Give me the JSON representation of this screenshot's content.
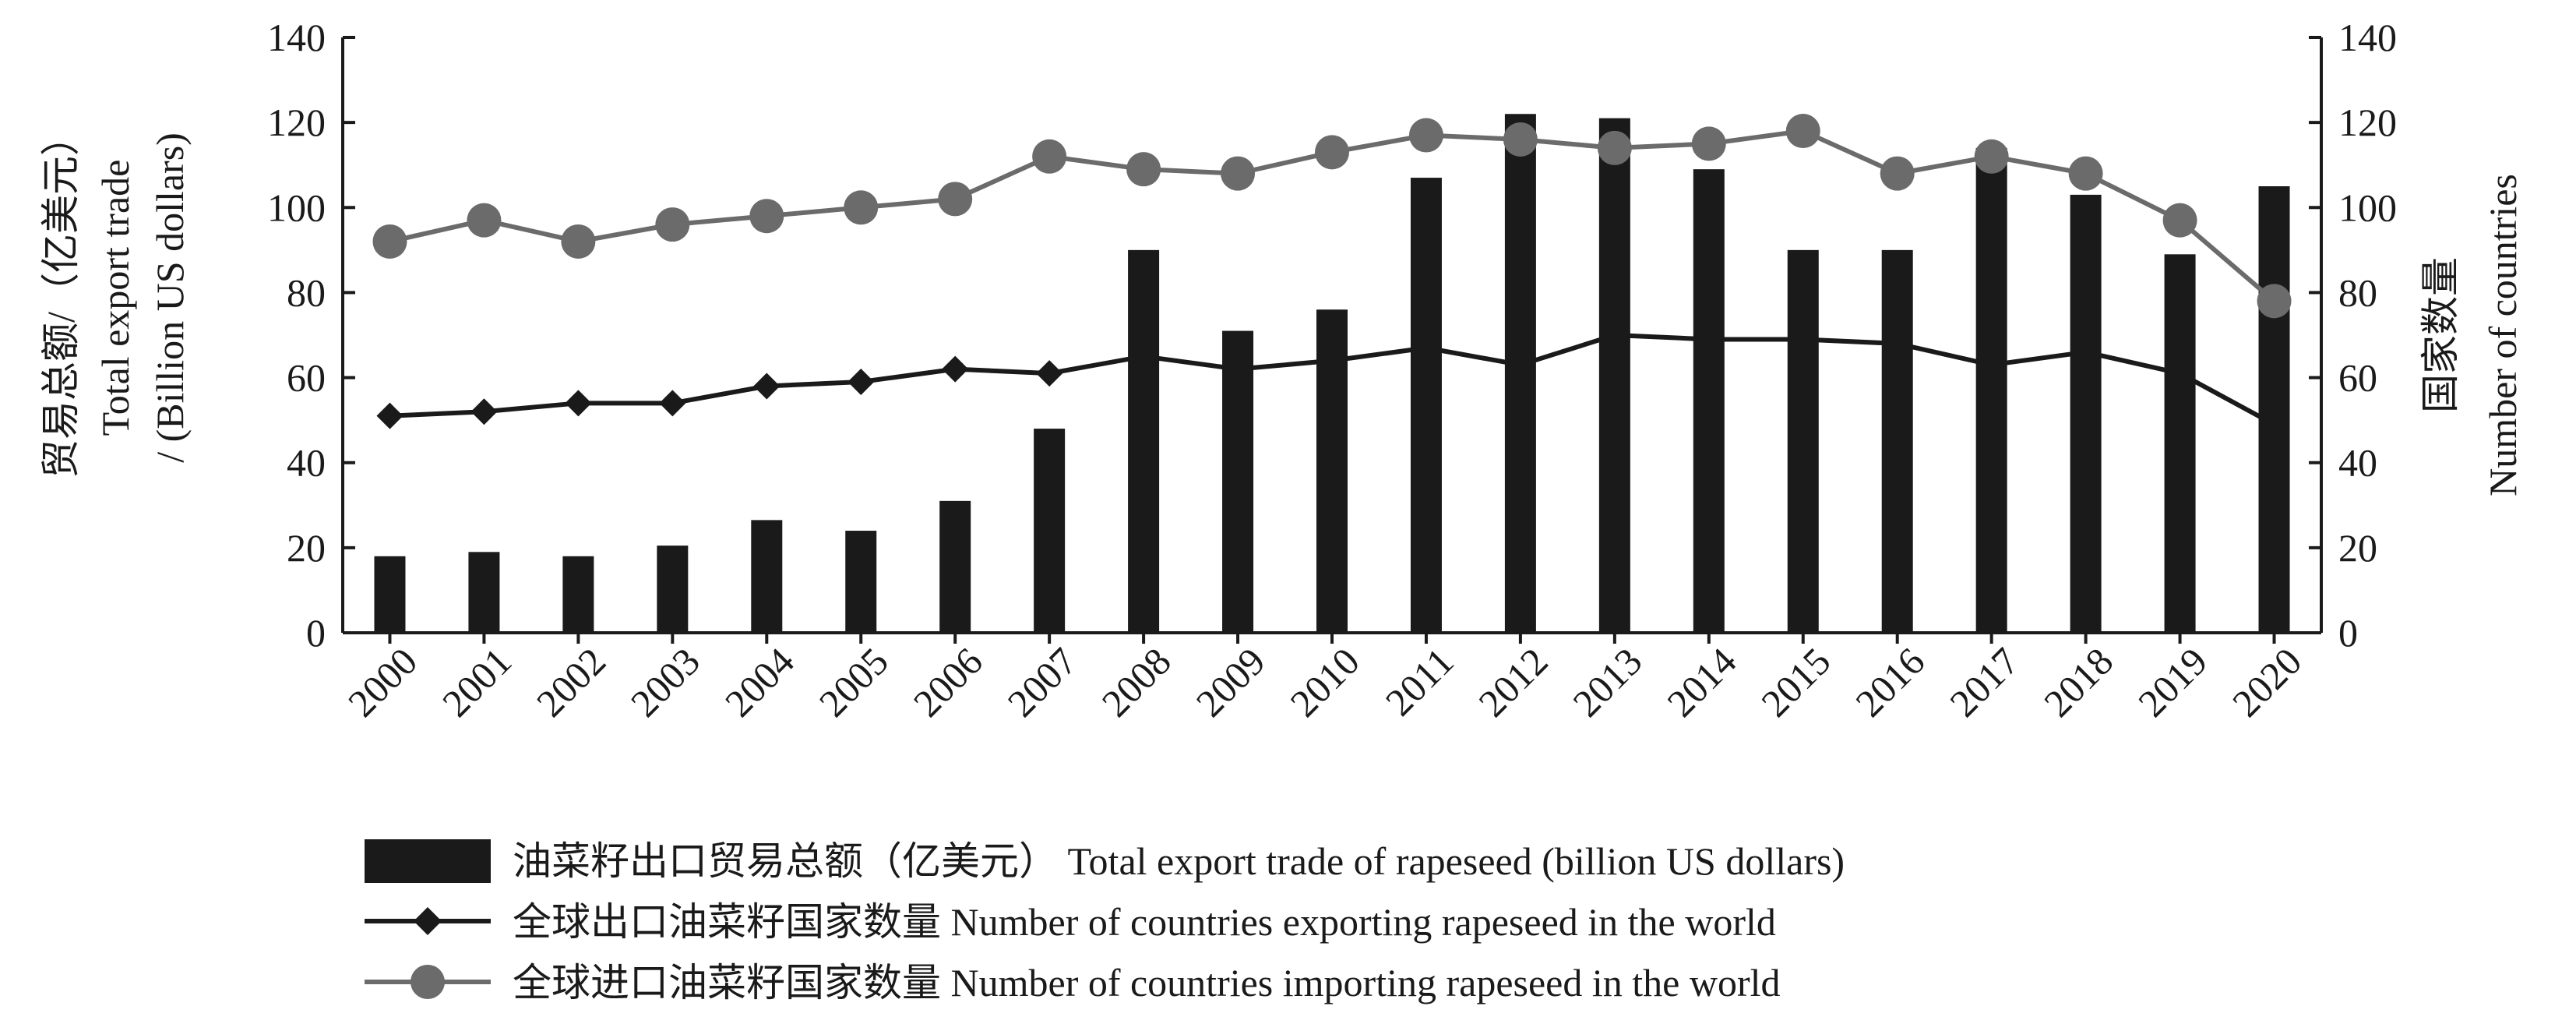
{
  "chart_data": {
    "type": "bar",
    "categories": [
      "2000",
      "2001",
      "2002",
      "2003",
      "2004",
      "2005",
      "2006",
      "2007",
      "2008",
      "2009",
      "2010",
      "2011",
      "2012",
      "2013",
      "2014",
      "2015",
      "2016",
      "2017",
      "2018",
      "2019",
      "2020"
    ],
    "left_axis": {
      "title_line1": "贸易总额/（亿美元）",
      "title_line2": "Total export trade",
      "title_line3": "/ (Billion US dollars)",
      "ylim": [
        0,
        140
      ],
      "ticks": [
        "0",
        "20",
        "40",
        "60",
        "80",
        "100",
        "120",
        "140"
      ]
    },
    "right_axis": {
      "title_line1": "国家数量",
      "title_line2": "Number of countries",
      "ylim": [
        0,
        140
      ],
      "ticks": [
        "0",
        "20",
        "40",
        "60",
        "80",
        "100",
        "120",
        "140"
      ]
    },
    "grid": false,
    "legend_position": "bottom",
    "series": [
      {
        "name": "油菜籽出口贸易总额（亿美元） Total export trade of rapeseed (billion US dollars)",
        "kind": "bar",
        "axis": "left",
        "color": "#1a1a1a",
        "values": [
          18,
          19,
          18,
          20.5,
          26.5,
          24,
          31,
          48,
          90,
          71,
          76,
          107,
          122,
          121,
          109,
          90,
          90,
          114,
          103,
          89,
          105
        ]
      },
      {
        "name": "全球出口油菜籽国家数量 Number of countries exporting rapeseed in the world",
        "kind": "line",
        "marker": "diamond",
        "axis": "right",
        "color": "#1a1a1a",
        "values": [
          51,
          52,
          54,
          54,
          58,
          59,
          62,
          61,
          65,
          62,
          64,
          67,
          63,
          70,
          69,
          69,
          68,
          63,
          66,
          61,
          49
        ]
      },
      {
        "name": "全球进口油菜籽国家数量 Number of countries importing rapeseed in the world",
        "kind": "line",
        "marker": "circle",
        "axis": "right",
        "color": "#6b6b6b",
        "values": [
          92,
          97,
          92,
          96,
          98,
          100,
          102,
          112,
          109,
          108,
          113,
          117,
          116,
          114,
          115,
          118,
          108,
          112,
          108,
          97,
          78
        ]
      }
    ]
  }
}
